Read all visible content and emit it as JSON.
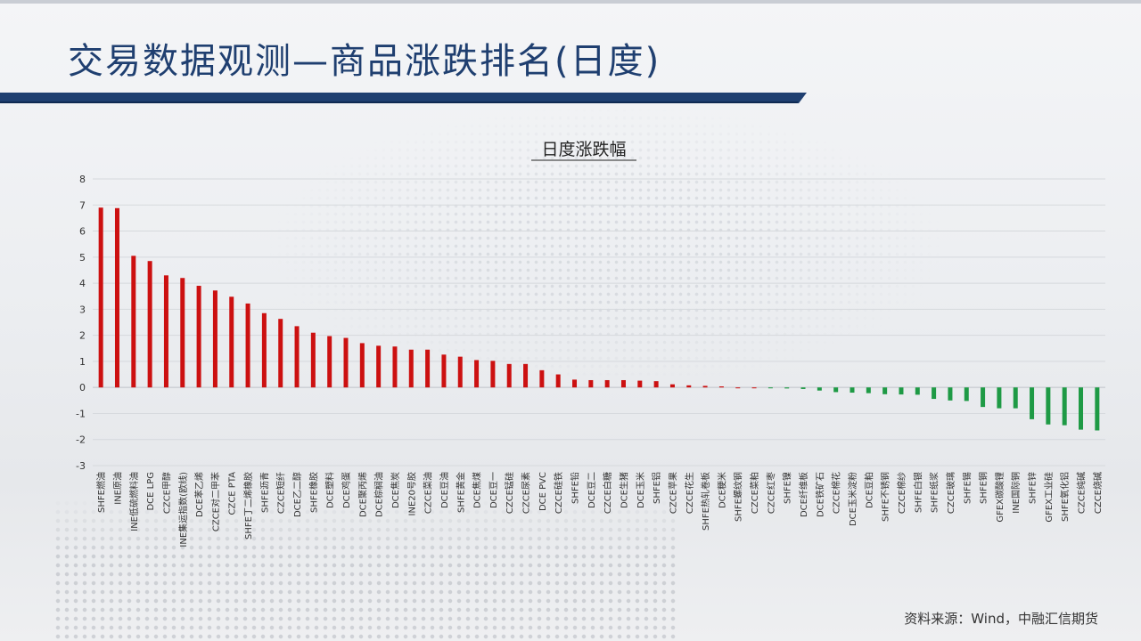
{
  "page": {
    "title": "交易数据观测—商品涨跌排名(日度)",
    "source": "资料来源：Wind，中融汇信期货"
  },
  "colors": {
    "title": "#1f3f70",
    "accent_bar": "#1f3f70",
    "positive": "#cc1010",
    "negative": "#1e9a45"
  },
  "chart_data": {
    "type": "bar",
    "title": "日度涨跌幅",
    "xlabel": "",
    "ylabel": "",
    "ylim": [
      -3,
      8
    ],
    "yticks": [
      -3,
      -2,
      -1,
      0,
      1,
      2,
      3,
      4,
      5,
      6,
      7,
      8
    ],
    "grid": true,
    "legend": "none",
    "categories": [
      "SHFE燃油",
      "INE原油",
      "INE低硫燃料油",
      "DCE LPG",
      "CZCE甲醇",
      "INE集运指数(欧线)",
      "DCE苯乙烯",
      "CZCE对二甲苯",
      "CZCE PTA",
      "SHFE丁二烯橡胶",
      "SHFE沥青",
      "CZCE短纤",
      "DCE乙二醇",
      "SHFE橡胶",
      "DCE塑料",
      "DCE鸡蛋",
      "DCE聚丙烯",
      "DCE棕榈油",
      "DCE焦炭",
      "INE20号胶",
      "CZCE菜油",
      "DCE豆油",
      "SHFE黄金",
      "DCE焦煤",
      "DCE豆一",
      "CZCE锰硅",
      "CZCE尿素",
      "DCE PVC",
      "CZCE硅铁",
      "SHFE铅",
      "DCE豆二",
      "CZCE白糖",
      "DCE生猪",
      "DCE玉米",
      "SHFE铝",
      "CZCE苹果",
      "CZCE花生",
      "SHFE热轧卷板",
      "DCE粳米",
      "SHFE螺纹钢",
      "CZCE菜粕",
      "CZCE红枣",
      "SHFE镍",
      "DCE纤维板",
      "DCE铁矿石",
      "CZCE棉花",
      "DCE玉米淀粉",
      "DCE豆粕",
      "SHFE不锈钢",
      "CZCE棉纱",
      "SHFE白银",
      "SHFE纸浆",
      "CZCE玻璃",
      "SHFE锡",
      "SHFE铜",
      "GFEX碳酸锂",
      "INE国际铜",
      "SHFE锌",
      "GFEX工业硅",
      "SHFE氧化铝",
      "CZCE纯碱",
      "CZCE烧碱"
    ],
    "values": [
      6.9,
      6.88,
      5.05,
      4.85,
      4.3,
      4.2,
      3.9,
      3.72,
      3.48,
      3.22,
      2.85,
      2.63,
      2.35,
      2.1,
      1.97,
      1.9,
      1.7,
      1.6,
      1.57,
      1.45,
      1.45,
      1.26,
      1.18,
      1.05,
      1.02,
      0.9,
      0.9,
      0.66,
      0.5,
      0.3,
      0.28,
      0.28,
      0.28,
      0.26,
      0.24,
      0.12,
      0.08,
      0.06,
      0.04,
      0.0,
      0.0,
      -0.02,
      -0.04,
      -0.06,
      -0.12,
      -0.18,
      -0.2,
      -0.22,
      -0.26,
      -0.27,
      -0.28,
      -0.44,
      -0.5,
      -0.52,
      -0.75,
      -0.8,
      -0.8,
      -1.22,
      -1.42,
      -1.45,
      -1.62,
      -1.65
    ]
  }
}
